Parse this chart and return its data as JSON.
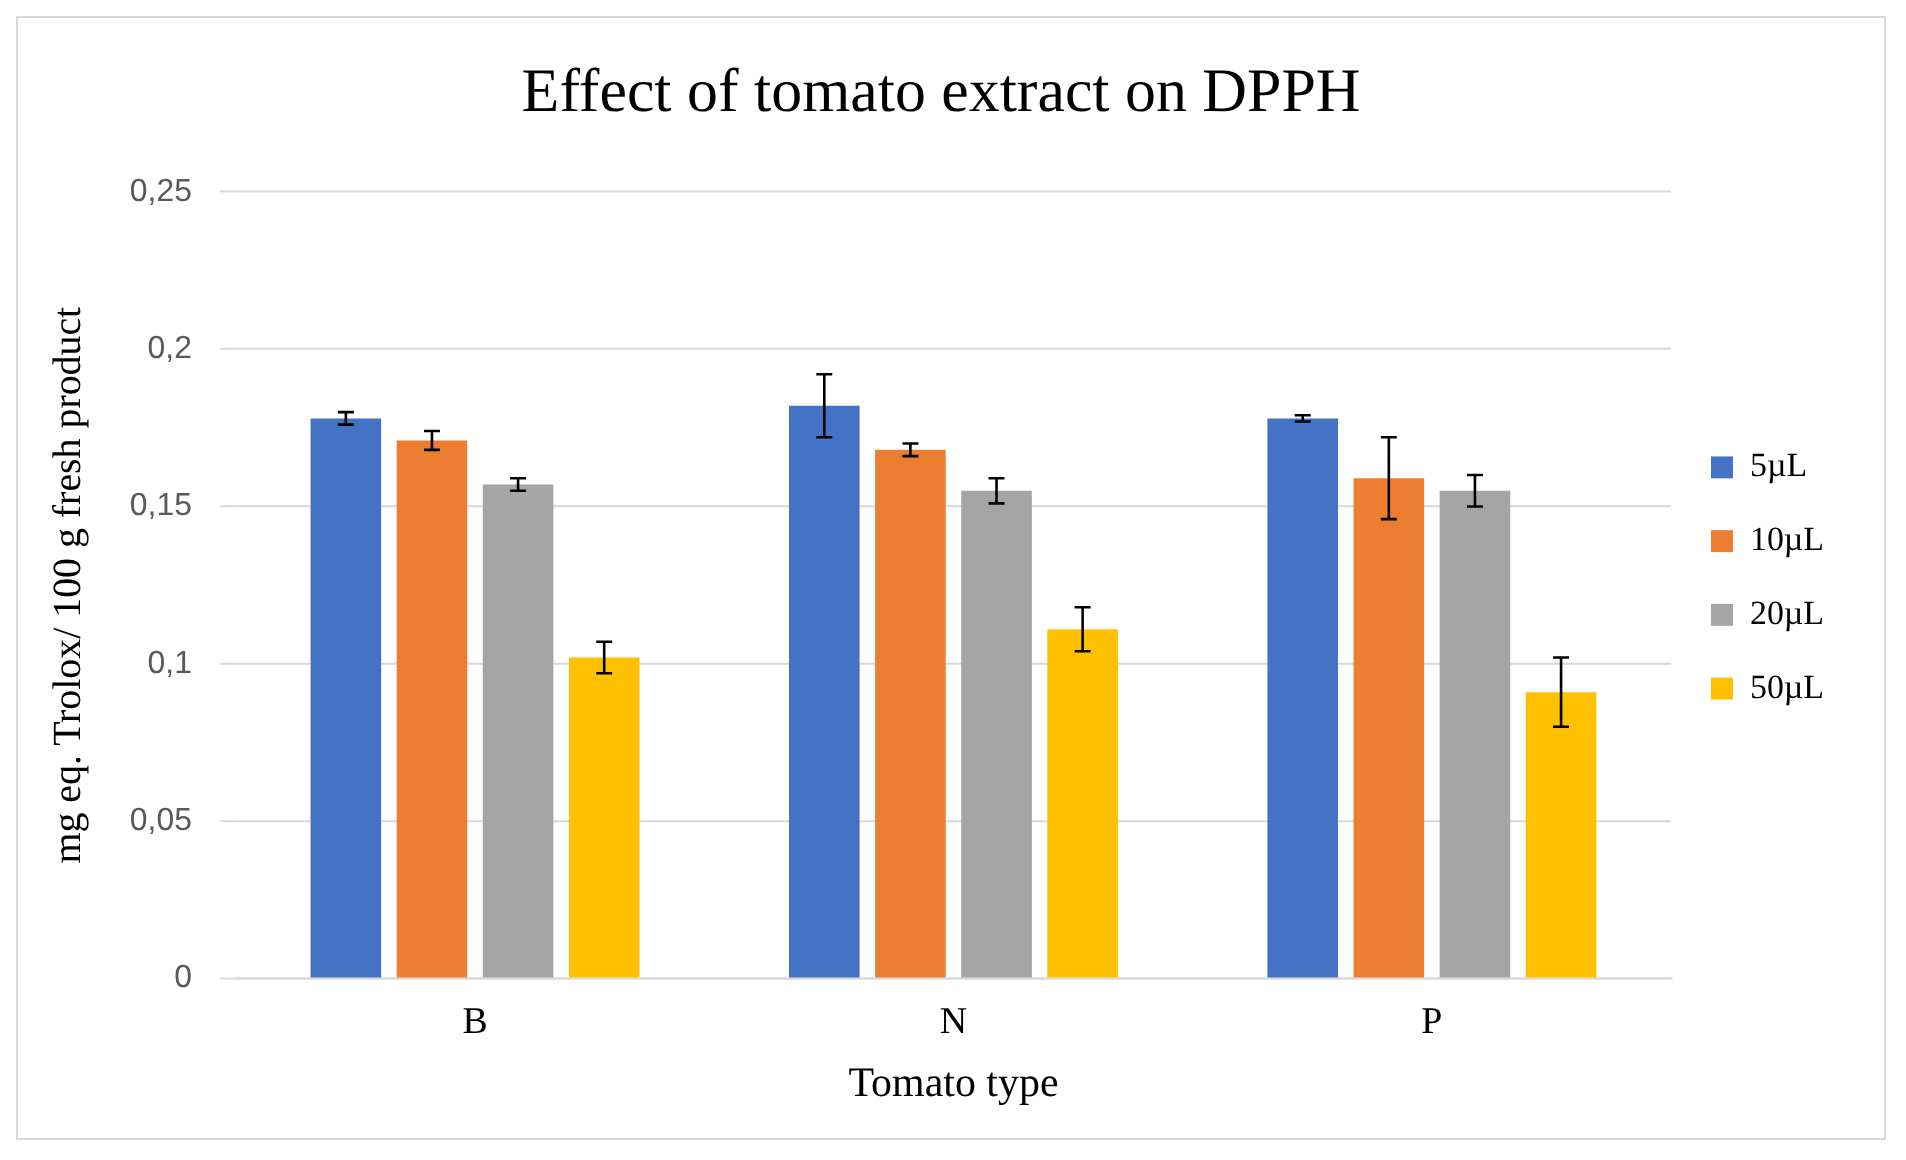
{
  "chart_data": {
    "type": "bar",
    "title": "Effect of tomato extract on DPPH",
    "xlabel": "Tomato type",
    "ylabel": "mg eq. Trolox/ 100 g fresh product",
    "categories": [
      "B",
      "N",
      "P"
    ],
    "series": [
      {
        "name": "5µL",
        "color": "#4472c4",
        "values": [
          0.178,
          0.182,
          0.178
        ],
        "errors": [
          0.002,
          0.01,
          0.001
        ]
      },
      {
        "name": "10µL",
        "color": "#ed7d31",
        "values": [
          0.171,
          0.168,
          0.159
        ],
        "errors": [
          0.003,
          0.002,
          0.013
        ]
      },
      {
        "name": "20µL",
        "color": "#a5a5a5",
        "values": [
          0.157,
          0.155,
          0.155
        ],
        "errors": [
          0.002,
          0.004,
          0.005
        ]
      },
      {
        "name": "50µL",
        "color": "#ffc000",
        "values": [
          0.102,
          0.111,
          0.091
        ],
        "errors": [
          0.005,
          0.007,
          0.011
        ]
      }
    ],
    "ylim": [
      0,
      0.25
    ],
    "yticks": [
      {
        "value": 0,
        "label": "0"
      },
      {
        "value": 0.05,
        "label": "0,05"
      },
      {
        "value": 0.1,
        "label": "0,1"
      },
      {
        "value": 0.15,
        "label": "0,15"
      },
      {
        "value": 0.2,
        "label": "0,2"
      },
      {
        "value": 0.25,
        "label": "0,25"
      }
    ],
    "grid": "y",
    "legend": "right"
  }
}
